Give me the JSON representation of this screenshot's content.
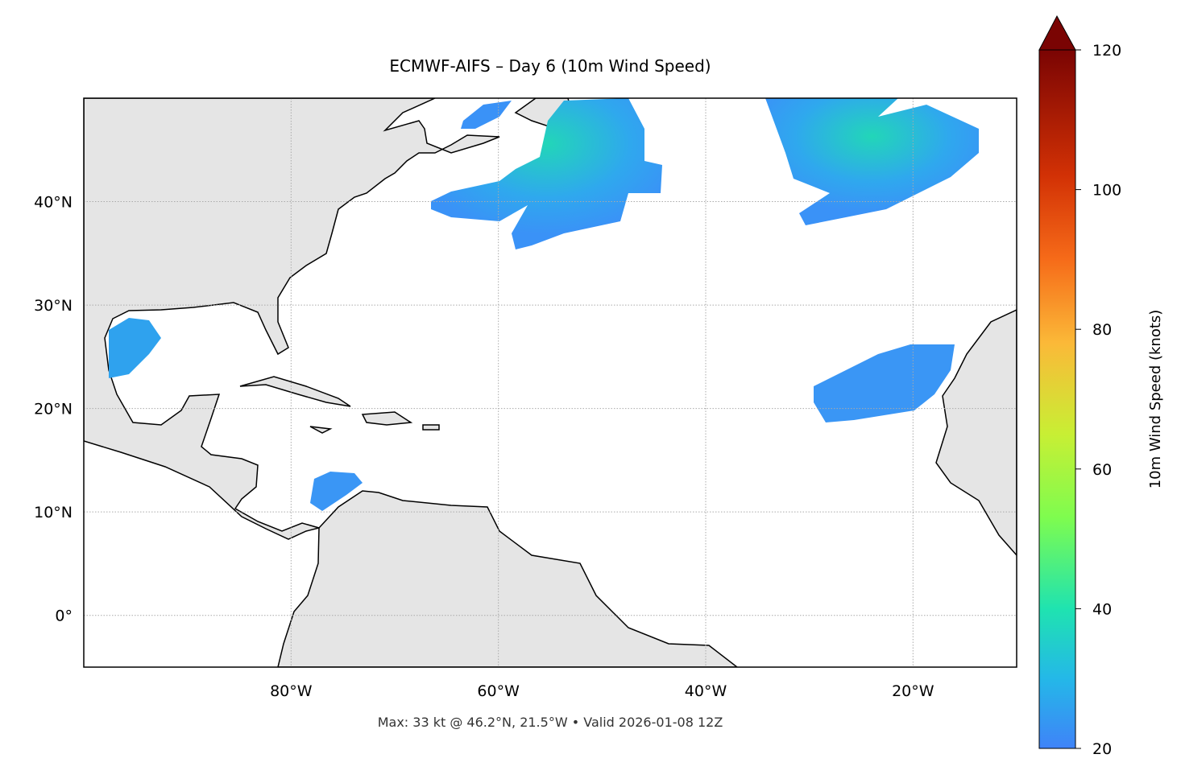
{
  "chart_data": {
    "type": "map",
    "title": "ECMWF-AIFS – Day 6 (10m Wind Speed)",
    "subtitle": "Max: 33 kt @ 46.2°N, 21.5°W • Valid 2026-01-08 12Z",
    "xlim": [
      -100,
      -10
    ],
    "ylim": [
      -5,
      50
    ],
    "xticks": [
      {
        "value": -80,
        "label": "80°W"
      },
      {
        "value": -60,
        "label": "60°W"
      },
      {
        "value": -40,
        "label": "40°W"
      },
      {
        "value": -20,
        "label": "20°W"
      }
    ],
    "yticks": [
      {
        "value": 0,
        "label": "0°"
      },
      {
        "value": 10,
        "label": "10°N"
      },
      {
        "value": 20,
        "label": "20°N"
      },
      {
        "value": 30,
        "label": "30°N"
      },
      {
        "value": 40,
        "label": "40°N"
      }
    ],
    "grid": true,
    "colorbar": {
      "label": "10m Wind Speed (knots)",
      "lim": [
        20,
        120
      ],
      "ticks": [
        20,
        40,
        60,
        80,
        100,
        120
      ],
      "extend": "max"
    }
  }
}
